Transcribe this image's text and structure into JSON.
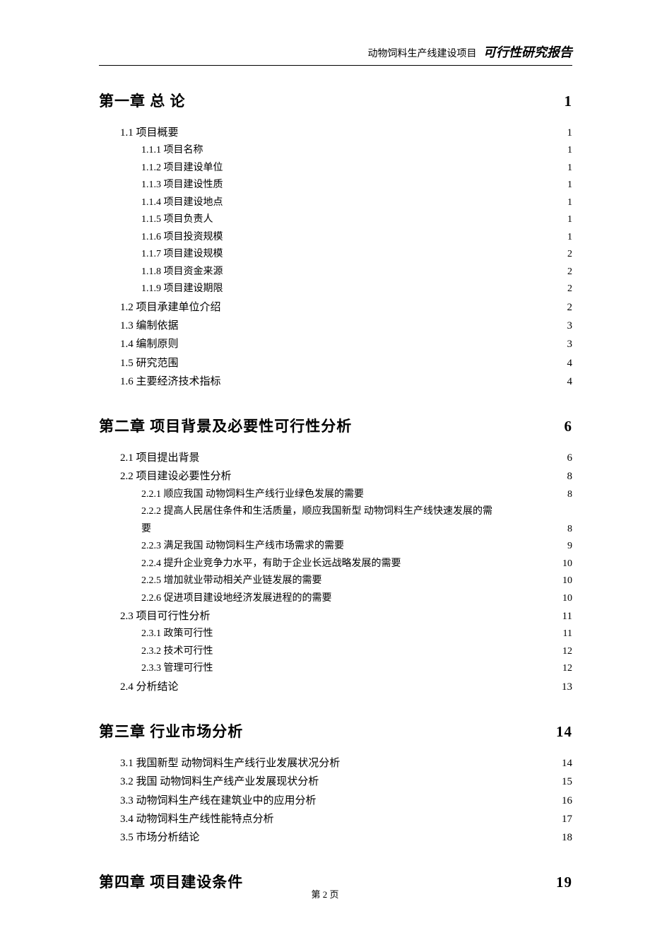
{
  "header": {
    "project": "动物饲料生产线建设项目",
    "report": "可行性研究报告"
  },
  "footer": "第 2 页",
  "toc": [
    {
      "type": "chapter",
      "title": "第一章 总 论",
      "page": "1"
    },
    {
      "type": "sec",
      "title": "1.1 项目概要",
      "page": "1"
    },
    {
      "type": "sub",
      "title": "1.1.1 项目名称",
      "page": "1"
    },
    {
      "type": "sub",
      "title": "1.1.2 项目建设单位",
      "page": "1"
    },
    {
      "type": "sub",
      "title": "1.1.3 项目建设性质",
      "page": "1"
    },
    {
      "type": "sub",
      "title": "1.1.4 项目建设地点",
      "page": "1"
    },
    {
      "type": "sub",
      "title": "1.1.5 项目负责人",
      "page": "1"
    },
    {
      "type": "sub",
      "title": "1.1.6 项目投资规模",
      "page": "1"
    },
    {
      "type": "sub",
      "title": "1.1.7 项目建设规模",
      "page": "2"
    },
    {
      "type": "sub",
      "title": "1.1.8 项目资金来源",
      "page": "2"
    },
    {
      "type": "sub",
      "title": "1.1.9 项目建设期限",
      "page": "2"
    },
    {
      "type": "sec",
      "title": "1.2 项目承建单位介绍",
      "page": "2"
    },
    {
      "type": "sec",
      "title": "1.3 编制依据",
      "page": "3"
    },
    {
      "type": "sec",
      "title": "1.4 编制原则",
      "page": "3"
    },
    {
      "type": "sec",
      "title": "1.5 研究范围",
      "page": "4"
    },
    {
      "type": "sec",
      "title": "1.6 主要经济技术指标",
      "page": "4"
    },
    {
      "type": "chapter",
      "title": "第二章 项目背景及必要性可行性分析",
      "page": "6"
    },
    {
      "type": "sec",
      "title": "2.1 项目提出背景",
      "page": "6"
    },
    {
      "type": "sec",
      "title": "2.2 项目建设必要性分析",
      "page": "8"
    },
    {
      "type": "sub",
      "title": "2.2.1 顺应我国 动物饲料生产线行业绿色发展的需要",
      "page": "8"
    },
    {
      "type": "sub",
      "wrap": true,
      "title": "2.2.2 提高人民居住条件和生活质量，顺应我国新型 动物饲料生产线快速发展的需"
    },
    {
      "type": "sub",
      "cont": true,
      "title": "要",
      "page": "8"
    },
    {
      "type": "sub",
      "title": "2.2.3 满足我国 动物饲料生产线市场需求的需要",
      "page": "9"
    },
    {
      "type": "sub",
      "title": "2.2.4 提升企业竞争力水平，有助于企业长远战略发展的需要",
      "page": "10"
    },
    {
      "type": "sub",
      "title": "2.2.5 增加就业带动相关产业链发展的需要",
      "page": "10"
    },
    {
      "type": "sub",
      "title": "2.2.6 促进项目建设地经济发展进程的的需要",
      "page": "10"
    },
    {
      "type": "sec",
      "title": "2.3 项目可行性分析",
      "page": "11"
    },
    {
      "type": "sub",
      "title": "2.3.1 政策可行性",
      "page": "11"
    },
    {
      "type": "sub",
      "title": "2.3.2 技术可行性",
      "page": "12"
    },
    {
      "type": "sub",
      "title": "2.3.3 管理可行性",
      "page": "12"
    },
    {
      "type": "sec",
      "title": "2.4 分析结论",
      "page": "13"
    },
    {
      "type": "chapter",
      "title": "第三章 行业市场分析",
      "page": "14"
    },
    {
      "type": "sec",
      "title": "3.1 我国新型 动物饲料生产线行业发展状况分析",
      "page": "14"
    },
    {
      "type": "sec",
      "title": "3.2 我国 动物饲料生产线产业发展现状分析",
      "page": "15"
    },
    {
      "type": "sec",
      "title": "3.3 动物饲料生产线在建筑业中的应用分析 ",
      "page": "16"
    },
    {
      "type": "sec",
      "title": "3.4 动物饲料生产线性能特点分析 ",
      "page": "17"
    },
    {
      "type": "sec",
      "title": "3.5 市场分析结论",
      "page": "18"
    },
    {
      "type": "chapter",
      "title": "第四章 项目建设条件",
      "page": "19"
    }
  ]
}
